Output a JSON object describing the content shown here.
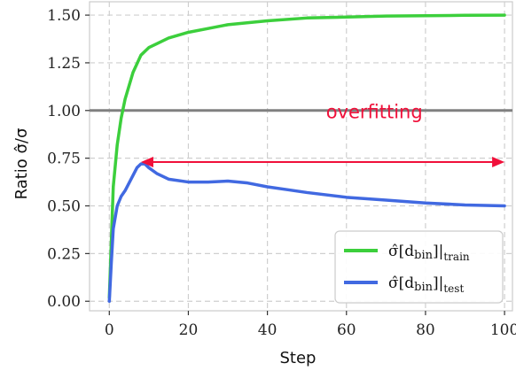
{
  "chart_data": {
    "type": "line",
    "xlabel": "Step",
    "ylabel": "Ratio σ̂/σ",
    "xlim": [
      -5,
      102
    ],
    "ylim": [
      -0.05,
      1.57
    ],
    "xticks": [
      0,
      20,
      40,
      60,
      80,
      100
    ],
    "yticks": [
      0.0,
      0.25,
      0.5,
      0.75,
      1.0,
      1.25,
      1.5
    ],
    "xtick_labels": [
      "0",
      "20",
      "40",
      "60",
      "80",
      "100"
    ],
    "ytick_labels": [
      "0.00",
      "0.25",
      "0.50",
      "0.75",
      "1.00",
      "1.25",
      "1.50"
    ],
    "grid": true,
    "legend_position": "bottom-right",
    "reference_line": {
      "y": 1.0,
      "color": "#808080"
    },
    "series": [
      {
        "name": "σ̂[d_bin]|train",
        "legend_main": "σ̂[d",
        "legend_bold": "bin",
        "legend_close": "]|",
        "legend_sub": "train",
        "color": "#3ccf3c",
        "x": [
          0,
          1,
          2,
          3,
          4,
          6,
          8,
          10,
          12,
          15,
          20,
          25,
          30,
          40,
          50,
          60,
          70,
          80,
          90,
          100
        ],
        "y": [
          0.02,
          0.6,
          0.82,
          0.96,
          1.06,
          1.2,
          1.29,
          1.33,
          1.35,
          1.38,
          1.41,
          1.43,
          1.45,
          1.47,
          1.485,
          1.49,
          1.495,
          1.497,
          1.499,
          1.5
        ]
      },
      {
        "name": "σ̂[d_bin]|test",
        "legend_main": "σ̂[d",
        "legend_bold": "bin",
        "legend_close": "]|",
        "legend_sub": "test",
        "color": "#4169e1",
        "x": [
          0,
          0.5,
          1,
          2,
          3,
          4,
          5,
          6,
          7,
          8,
          9,
          10,
          12,
          15,
          20,
          25,
          30,
          35,
          40,
          45,
          50,
          60,
          70,
          80,
          90,
          100
        ],
        "y": [
          0.0,
          0.2,
          0.38,
          0.5,
          0.55,
          0.58,
          0.62,
          0.66,
          0.7,
          0.72,
          0.72,
          0.7,
          0.67,
          0.64,
          0.625,
          0.625,
          0.63,
          0.62,
          0.6,
          0.585,
          0.57,
          0.545,
          0.53,
          0.515,
          0.505,
          0.5
        ]
      }
    ],
    "annotation": {
      "text": "overfitting",
      "color": "#f0103a",
      "x_from": 8,
      "x_to": 100,
      "y": 0.73
    }
  }
}
